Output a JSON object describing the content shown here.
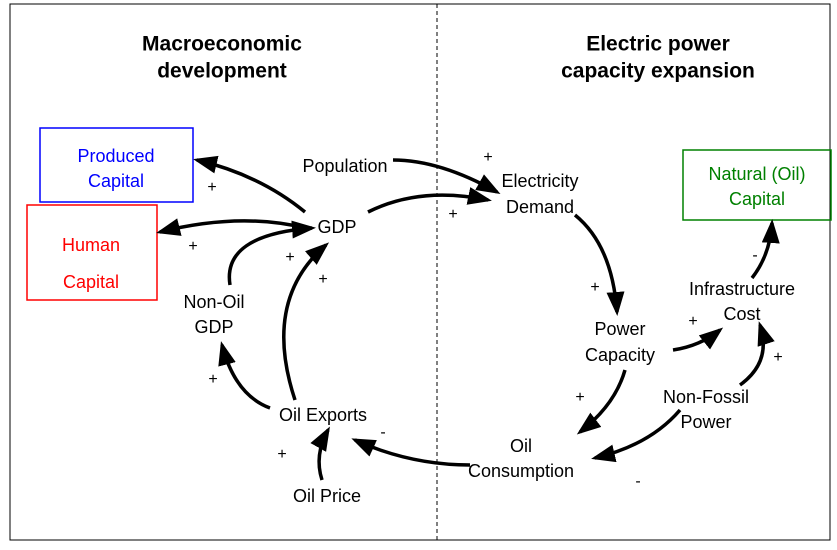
{
  "headings": {
    "left": [
      "Macroeconomic",
      "development"
    ],
    "right": [
      "Electric power",
      "capacity expansion"
    ]
  },
  "nodes": {
    "produced_capital": [
      "Produced",
      "Capital"
    ],
    "human_capital": [
      "Human",
      "Capital"
    ],
    "natural_capital": [
      "Natural (Oil)",
      "Capital"
    ],
    "population": [
      "Population"
    ],
    "gdp": [
      "GDP"
    ],
    "non_oil_gdp": [
      "Non-Oil",
      "GDP"
    ],
    "oil_exports": [
      "Oil Exports"
    ],
    "oil_price": [
      "Oil Price"
    ],
    "electricity_demand": [
      "Electricity",
      "Demand"
    ],
    "power_capacity": [
      "Power",
      "Capacity"
    ],
    "infrastructure_cost": [
      "Infrastructure",
      "Cost"
    ],
    "non_fossil_power": [
      "Non-Fossil",
      "Power"
    ],
    "oil_consumption": [
      "Oil",
      "Consumption"
    ]
  },
  "polarities": [
    "+",
    "+",
    "+",
    "+",
    "+",
    "+",
    "+",
    "+",
    "-",
    "+",
    "+",
    "+",
    "-",
    "+",
    "-"
  ]
}
